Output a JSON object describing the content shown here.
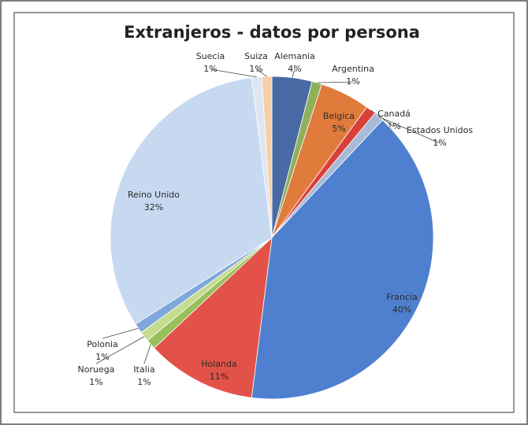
{
  "chart_data": {
    "type": "pie",
    "title": "Extranjeros - datos por persona",
    "categories": [
      "Alemania",
      "Argentina",
      "Belgica",
      "Canadá",
      "Estados Unidos",
      "Francia",
      "Holanda",
      "Italia",
      "Noruega",
      "Polonia",
      "Reino Unido",
      "Suecia",
      "Suiza"
    ],
    "values": [
      4,
      1,
      5,
      1,
      1,
      40,
      11,
      1,
      1,
      1,
      32,
      1,
      1
    ],
    "value_labels": [
      "4%",
      "1%",
      "5%",
      "1%",
      "1%",
      "40%",
      "11%",
      "1%",
      "1%",
      "1%",
      "32%",
      "1%",
      "1%"
    ],
    "colors": [
      "#4a6aa5",
      "#8fb05a",
      "#e07b3c",
      "#d9403a",
      "#a9bad6",
      "#4f80cf",
      "#e25248",
      "#98bf5a",
      "#c5db8e",
      "#7fa7dc",
      "#c7d9f1",
      "#dde6f2",
      "#f6cfa8"
    ]
  }
}
